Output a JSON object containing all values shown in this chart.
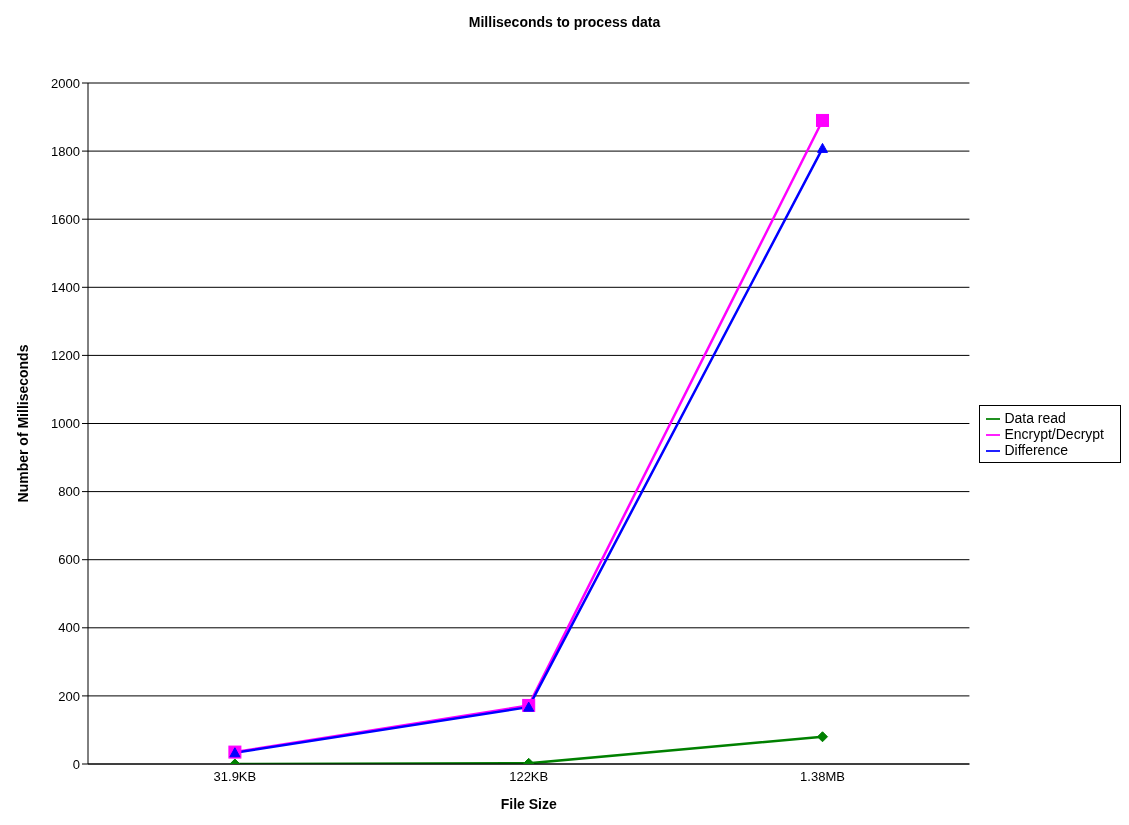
{
  "chart_data": {
    "type": "line",
    "title": "Milliseconds to process data",
    "xlabel": "File Size",
    "ylabel": "Number of Milliseconds",
    "categories": [
      "31.9KB",
      "122KB",
      "1.38MB"
    ],
    "series": [
      {
        "name": "Data read",
        "color": "#008000",
        "marker": "diamond",
        "values": [
          0,
          2,
          80
        ]
      },
      {
        "name": "Encrypt/Decrypt",
        "color": "#ff00ff",
        "marker": "square",
        "values": [
          35,
          172,
          1890
        ]
      },
      {
        "name": "Difference",
        "color": "#0000ff",
        "marker": "triangle",
        "values": [
          33,
          167,
          1808
        ]
      }
    ],
    "ylim": [
      0,
      2000
    ],
    "yticks": [
      0,
      200,
      400,
      600,
      800,
      1000,
      1200,
      1400,
      1600,
      1800,
      2000
    ],
    "grid": "y",
    "legend": "right",
    "line_style": "solid"
  }
}
